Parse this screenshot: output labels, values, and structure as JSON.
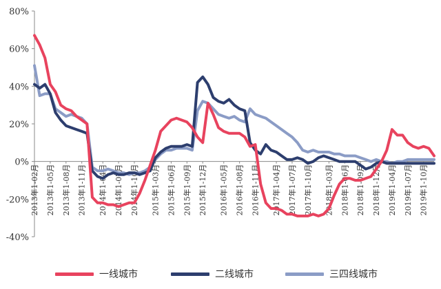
{
  "chart_data": {
    "type": "line",
    "title": "",
    "xlabel": "",
    "ylabel": "",
    "ylim": [
      -40,
      80
    ],
    "yticks": [
      -40,
      -20,
      0,
      20,
      40,
      60,
      80
    ],
    "ytick_labels": [
      "-40%",
      "-20%",
      "0%",
      "20%",
      "40%",
      "60%",
      "80%"
    ],
    "grid": false,
    "legend_position": "bottom",
    "x": [
      "2013年1-02月",
      "2013年1-03月",
      "2013年1-04月",
      "2013年1-05月",
      "2013年1-06月",
      "2013年1-07月",
      "2013年1-08月",
      "2013年1-09月",
      "2013年1-10月",
      "2013年1-11月",
      "2013年1-12月",
      "2014年1-02月",
      "2014年1-03月",
      "2014年1-04月",
      "2014年1-05月",
      "2014年1-06月",
      "2014年1-07月",
      "2014年1-08月",
      "2014年1-09月",
      "2014年1-10月",
      "2014年1-11月",
      "2014年1-12月",
      "2015年1-02月",
      "2015年1-03月",
      "2015年1-04月",
      "2015年1-05月",
      "2015年1-06月",
      "2015年1-07月",
      "2015年1-08月",
      "2015年1-09月",
      "2015年1-10月",
      "2015年1-11月",
      "2015年1-12月",
      "2016年1-02月",
      "2016年1-03月",
      "2016年1-04月",
      "2016年1-05月",
      "2016年1-06月",
      "2016年1-07月",
      "2016年1-08月",
      "2016年1-09月",
      "2016年1-10月",
      "2016年1-11月",
      "2016年1-12月",
      "2017年1-02月",
      "2017年1-03月",
      "2017年1-04月",
      "2017年1-05月",
      "2017年1-06月",
      "2017年1-07月",
      "2017年1-08月",
      "2017年1-09月",
      "2017年1-10月",
      "2017年1-11月",
      "2017年1-12月",
      "2018年1-02月",
      "2018年1-03月",
      "2018年1-04月",
      "2018年1-05月",
      "2018年1-06月",
      "2018年1-07月",
      "2018年1-08月",
      "2018年1-09月",
      "2018年1-10月",
      "2018年1-11月",
      "2018年1-12月",
      "2019年1-02月",
      "2019年1-03月",
      "2019年1-04月",
      "2019年1-05月",
      "2019年1-06月",
      "2019年1-07月",
      "2019年1-08月",
      "2019年1-09月",
      "2019年1-10月",
      "2019年1-11月",
      "2019年1-12月"
    ],
    "x_tick_labels": [
      "2013年1-02月",
      "2013年1-05月",
      "2013年1-08月",
      "2013年1-11月",
      "2014年1-04月",
      "2014年1-07月",
      "2014年1-10月",
      "2015年1-03月",
      "2015年1-06月",
      "2015年1-09月",
      "2015年1-12月",
      "2016年1-05月",
      "2016年1-08月",
      "2016年1-11月",
      "2017年1-04月",
      "2017年1-07月",
      "2017年1-10月",
      "2018年1-03月",
      "2018年1-06月",
      "2018年1-09月",
      "2018年1-12月",
      "2019年1-04月",
      "2019年1-07月",
      "2019年1-10月"
    ],
    "series": [
      {
        "name": "一线城市",
        "color": "#e8435e",
        "values": [
          67,
          62,
          55,
          41,
          37,
          30,
          28,
          27,
          24,
          22,
          20,
          -19,
          -22,
          -22,
          -23,
          -23,
          -24,
          -23,
          -22,
          -22,
          -17,
          -10,
          -2,
          6,
          16,
          19,
          22,
          23,
          22,
          21,
          18,
          13,
          10,
          31,
          25,
          18,
          16,
          15,
          15,
          15,
          13,
          8,
          9,
          -12,
          -22,
          -25,
          -25,
          -26,
          -28,
          -28,
          -29,
          -29,
          -29,
          -28,
          -29,
          -28,
          -25,
          -18,
          -12,
          -9,
          -9,
          -10,
          -10,
          -9,
          -8,
          -4,
          0,
          6,
          17,
          14,
          14,
          10,
          8,
          7,
          8,
          7,
          3
        ]
      },
      {
        "name": "二线城市",
        "color": "#2d3e6e",
        "values": [
          41,
          39,
          41,
          36,
          26,
          22,
          19,
          18,
          17,
          16,
          15,
          -5,
          -8,
          -9,
          -7,
          -6,
          -7,
          -7,
          -6,
          -6,
          -7,
          -6,
          -5,
          2,
          5,
          7,
          8,
          8,
          8,
          9,
          8,
          42,
          45,
          41,
          34,
          32,
          31,
          33,
          30,
          28,
          27,
          10,
          6,
          4,
          9,
          6,
          5,
          3,
          1,
          1,
          2,
          1,
          -1,
          0,
          2,
          3,
          2,
          1,
          0,
          0,
          0,
          0,
          -2,
          -4,
          -3,
          -1,
          0,
          -1,
          -1,
          -1,
          -1,
          -1,
          -1,
          -1,
          -1,
          -1,
          -1
        ]
      },
      {
        "name": "三四线城市",
        "color": "#8b9cc6",
        "values": [
          51,
          35,
          36,
          36,
          28,
          26,
          24,
          25,
          24,
          23,
          20,
          -3,
          -5,
          -5,
          -4,
          -5,
          -6,
          -6,
          -7,
          -6,
          -6,
          -5,
          -3,
          1,
          4,
          6,
          6,
          7,
          7,
          7,
          6,
          27,
          32,
          31,
          28,
          25,
          24,
          23,
          24,
          22,
          21,
          28,
          25,
          24,
          23,
          21,
          19,
          17,
          15,
          13,
          10,
          6,
          5,
          6,
          5,
          5,
          5,
          4,
          4,
          3,
          3,
          3,
          2,
          1,
          0,
          1,
          0,
          0,
          -1,
          0,
          0,
          1,
          1,
          1,
          1,
          1,
          1
        ]
      }
    ]
  }
}
